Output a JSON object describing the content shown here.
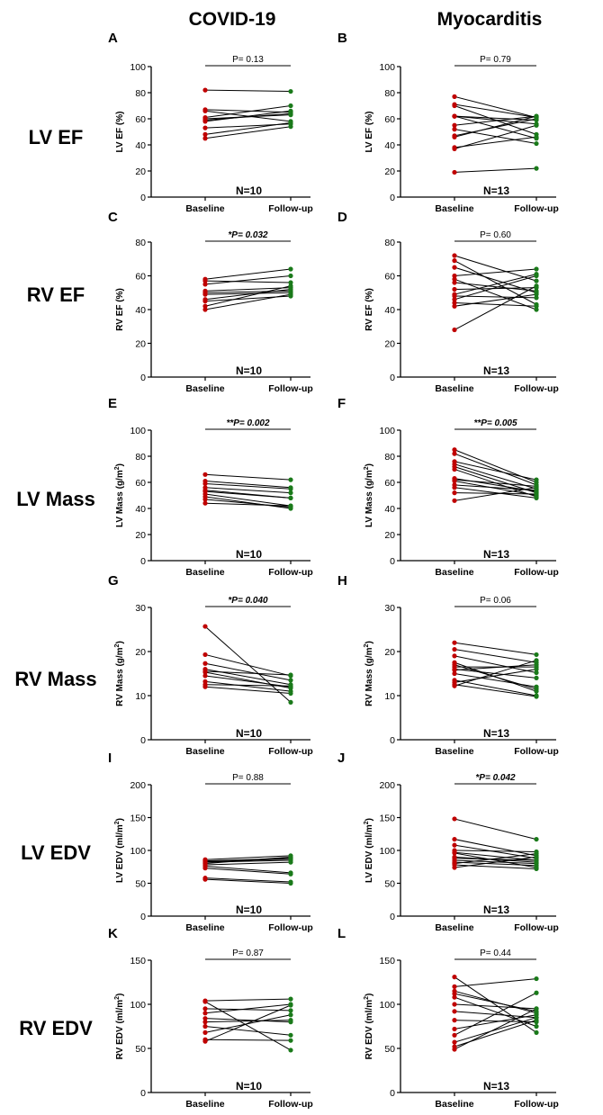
{
  "columns": [
    "COVID-19",
    "Myocarditis"
  ],
  "row_labels": [
    "LV EF",
    "RV EF",
    "LV Mass",
    "RV Mass",
    "LV EDV",
    "RV EDV"
  ],
  "colors": {
    "baseline": "#c00000",
    "followup": "#1a7a1a",
    "line": "#000000"
  },
  "chart_data": [
    {
      "type": "line",
      "panel": "A",
      "column": "COVID-19",
      "ylabel": "LV EF (%)",
      "ylabel_super": "",
      "ylim": [
        0,
        100
      ],
      "yticks": [
        0,
        20,
        40,
        60,
        80,
        100
      ],
      "categories": [
        "Baseline",
        "Follow-up"
      ],
      "p_text": "P= 0.13",
      "significant": false,
      "n_label": "N=10",
      "series": [
        [
          82,
          81
        ],
        [
          67,
          65
        ],
        [
          66,
          58
        ],
        [
          61,
          70
        ],
        [
          60,
          63
        ],
        [
          59,
          64
        ],
        [
          58,
          66
        ],
        [
          53,
          56
        ],
        [
          48,
          57
        ],
        [
          45,
          54
        ]
      ]
    },
    {
      "type": "line",
      "panel": "B",
      "column": "Myocarditis",
      "ylabel": "LV EF (%)",
      "ylabel_super": "",
      "ylim": [
        0,
        100
      ],
      "yticks": [
        0,
        20,
        40,
        60,
        80,
        100
      ],
      "categories": [
        "Baseline",
        "Follow-up"
      ],
      "p_text": "P= 0.79",
      "significant": false,
      "n_label": "N=13",
      "series": [
        [
          77,
          61
        ],
        [
          71,
          61
        ],
        [
          70,
          48
        ],
        [
          62,
          59
        ],
        [
          62,
          56
        ],
        [
          55,
          62
        ],
        [
          52,
          41
        ],
        [
          47,
          60
        ],
        [
          46,
          62
        ],
        [
          38,
          46
        ],
        [
          37,
          55
        ],
        [
          19,
          22
        ],
        [
          62,
          45
        ]
      ]
    },
    {
      "type": "line",
      "panel": "C",
      "column": "COVID-19",
      "ylabel": "RV EF (%)",
      "ylabel_super": "",
      "ylim": [
        0,
        80
      ],
      "yticks": [
        0,
        20,
        40,
        60,
        80
      ],
      "categories": [
        "Baseline",
        "Follow-up"
      ],
      "p_text": "*P= 0.032",
      "significant": true,
      "n_label": "N=10",
      "series": [
        [
          58,
          64
        ],
        [
          57,
          56
        ],
        [
          55,
          60
        ],
        [
          51,
          53
        ],
        [
          49,
          50
        ],
        [
          45,
          48
        ],
        [
          42,
          54
        ],
        [
          40,
          49
        ],
        [
          50,
          51
        ],
        [
          46,
          52
        ]
      ]
    },
    {
      "type": "line",
      "panel": "D",
      "column": "Myocarditis",
      "ylabel": "RV EF (%)",
      "ylabel_super": "",
      "ylim": [
        0,
        80
      ],
      "yticks": [
        0,
        20,
        40,
        60,
        80
      ],
      "categories": [
        "Baseline",
        "Follow-up"
      ],
      "p_text": "P= 0.60",
      "significant": false,
      "n_label": "N=13",
      "series": [
        [
          72,
          57
        ],
        [
          69,
          43
        ],
        [
          65,
          50
        ],
        [
          60,
          64
        ],
        [
          58,
          40
        ],
        [
          52,
          53
        ],
        [
          49,
          61
        ],
        [
          48,
          47
        ],
        [
          46,
          60
        ],
        [
          44,
          42
        ],
        [
          42,
          49
        ],
        [
          28,
          54
        ],
        [
          56,
          51
        ]
      ]
    },
    {
      "type": "line",
      "panel": "E",
      "column": "COVID-19",
      "ylabel": "LV Mass (g/m",
      "ylabel_super": "2",
      "ylim": [
        0,
        100
      ],
      "yticks": [
        0,
        20,
        40,
        60,
        80,
        100
      ],
      "categories": [
        "Baseline",
        "Follow-up"
      ],
      "p_text": "**P= 0.002",
      "significant": true,
      "n_label": "N=10",
      "series": [
        [
          66,
          62
        ],
        [
          61,
          56
        ],
        [
          59,
          55
        ],
        [
          56,
          52
        ],
        [
          54,
          48
        ],
        [
          51,
          42
        ],
        [
          49,
          40
        ],
        [
          47,
          41
        ],
        [
          44,
          42
        ],
        [
          53,
          48
        ]
      ]
    },
    {
      "type": "line",
      "panel": "F",
      "column": "Myocarditis",
      "ylabel": "LV Mass (g/m",
      "ylabel_super": "2",
      "ylim": [
        0,
        100
      ],
      "yticks": [
        0,
        20,
        40,
        60,
        80,
        100
      ],
      "categories": [
        "Baseline",
        "Follow-up"
      ],
      "p_text": "**P= 0.005",
      "significant": true,
      "n_label": "N=13",
      "series": [
        [
          85,
          60
        ],
        [
          82,
          58
        ],
        [
          76,
          62
        ],
        [
          74,
          55
        ],
        [
          72,
          52
        ],
        [
          62,
          57
        ],
        [
          61,
          50
        ],
        [
          58,
          54
        ],
        [
          56,
          48
        ],
        [
          52,
          51
        ],
        [
          46,
          56
        ],
        [
          63,
          53
        ],
        [
          70,
          49
        ]
      ]
    },
    {
      "type": "line",
      "panel": "G",
      "column": "COVID-19",
      "ylabel": "RV Mass (g/m",
      "ylabel_super": "2",
      "ylim": [
        0,
        30
      ],
      "yticks": [
        0,
        10,
        20,
        30
      ],
      "categories": [
        "Baseline",
        "Follow-up"
      ],
      "p_text": "*P= 0.040",
      "significant": true,
      "n_label": "N=10",
      "series": [
        [
          25.7,
          8.5
        ],
        [
          19.3,
          14.5
        ],
        [
          17.3,
          13.5
        ],
        [
          16.0,
          12.5
        ],
        [
          15.5,
          14.7
        ],
        [
          15.3,
          11.7
        ],
        [
          14.5,
          12.0
        ],
        [
          13.2,
          11.0
        ],
        [
          12.0,
          10.5
        ],
        [
          12.5,
          12.2
        ]
      ]
    },
    {
      "type": "line",
      "panel": "H",
      "column": "Myocarditis",
      "ylabel": "RV Mass (g/m",
      "ylabel_super": "2",
      "ylim": [
        0,
        30
      ],
      "yticks": [
        0,
        10,
        20,
        30
      ],
      "categories": [
        "Baseline",
        "Follow-up"
      ],
      "p_text": "P= 0.06",
      "significant": false,
      "n_label": "N=13",
      "series": [
        [
          22.0,
          19.3
        ],
        [
          20.5,
          17.5
        ],
        [
          19.0,
          15.2
        ],
        [
          17.5,
          11.0
        ],
        [
          16.5,
          16.5
        ],
        [
          16.0,
          14.0
        ],
        [
          15.8,
          17.0
        ],
        [
          15.0,
          12.0
        ],
        [
          13.5,
          10.0
        ],
        [
          13.0,
          16.0
        ],
        [
          12.5,
          9.8
        ],
        [
          12.2,
          18.0
        ],
        [
          17.0,
          11.5
        ]
      ]
    },
    {
      "type": "line",
      "panel": "I",
      "column": "COVID-19",
      "ylabel": "LV EDV (ml/m",
      "ylabel_super": "2",
      "ylim": [
        0,
        200
      ],
      "yticks": [
        0,
        50,
        100,
        150,
        200
      ],
      "categories": [
        "Baseline",
        "Follow-up"
      ],
      "p_text": "P= 0.88",
      "significant": false,
      "n_label": "N=10",
      "series": [
        [
          86,
          92
        ],
        [
          84,
          88
        ],
        [
          82,
          85
        ],
        [
          80,
          90
        ],
        [
          78,
          82
        ],
        [
          76,
          66
        ],
        [
          73,
          64
        ],
        [
          58,
          52
        ],
        [
          56,
          50
        ],
        [
          83,
          87
        ]
      ]
    },
    {
      "type": "line",
      "panel": "J",
      "column": "Myocarditis",
      "ylabel": "LV EDV (ml/m",
      "ylabel_super": "2",
      "ylim": [
        0,
        200
      ],
      "yticks": [
        0,
        50,
        100,
        150,
        200
      ],
      "categories": [
        "Baseline",
        "Follow-up"
      ],
      "p_text": "*P= 0.042",
      "significant": true,
      "n_label": "N=13",
      "series": [
        [
          148,
          117
        ],
        [
          117,
          92
        ],
        [
          108,
          88
        ],
        [
          100,
          98
        ],
        [
          97,
          85
        ],
        [
          96,
          74
        ],
        [
          90,
          82
        ],
        [
          85,
          80
        ],
        [
          82,
          77
        ],
        [
          80,
          95
        ],
        [
          78,
          72
        ],
        [
          74,
          90
        ],
        [
          88,
          85
        ]
      ]
    },
    {
      "type": "line",
      "panel": "K",
      "column": "COVID-19",
      "ylabel": "RV EDV (ml/m",
      "ylabel_super": "2",
      "ylim": [
        0,
        150
      ],
      "yticks": [
        0,
        50,
        100,
        150
      ],
      "categories": [
        "Baseline",
        "Follow-up"
      ],
      "p_text": "P= 0.87",
      "significant": false,
      "n_label": "N=10",
      "series": [
        [
          104,
          106
        ],
        [
          103,
          48
        ],
        [
          95,
          93
        ],
        [
          90,
          100
        ],
        [
          84,
          80
        ],
        [
          80,
          82
        ],
        [
          75,
          65
        ],
        [
          68,
          88
        ],
        [
          60,
          59
        ],
        [
          58,
          99
        ]
      ]
    },
    {
      "type": "line",
      "panel": "L",
      "column": "Myocarditis",
      "ylabel": "RV EDV (ml/m",
      "ylabel_super": "2",
      "ylim": [
        0,
        150
      ],
      "yticks": [
        0,
        50,
        100,
        150
      ],
      "categories": [
        "Baseline",
        "Follow-up"
      ],
      "p_text": "P= 0.44",
      "significant": false,
      "n_label": "N=13",
      "series": [
        [
          131,
          68
        ],
        [
          120,
          129
        ],
        [
          115,
          90
        ],
        [
          112,
          92
        ],
        [
          108,
          75
        ],
        [
          100,
          95
        ],
        [
          92,
          85
        ],
        [
          82,
          80
        ],
        [
          72,
          88
        ],
        [
          65,
          113
        ],
        [
          57,
          85
        ],
        [
          52,
          82
        ],
        [
          49,
          95
        ]
      ]
    }
  ]
}
